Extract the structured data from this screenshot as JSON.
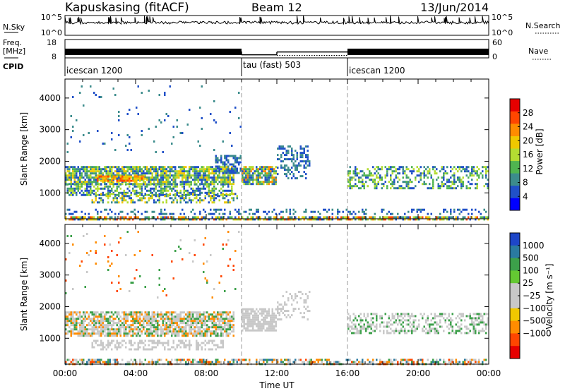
{
  "header": {
    "station": "Kapuskasing (fitACF)",
    "beam": "Beam 12",
    "date": "13/Jun/2014"
  },
  "sky_panel": {
    "left_label": "N.Sky",
    "left_ticks": [
      "10^5",
      "10^0"
    ],
    "right_label": "N.Search",
    "right_ticks": [
      "10^5",
      "10^0"
    ]
  },
  "freq_panel": {
    "left_label_line1": "Freq.",
    "left_label_line2": "[MHz]",
    "left_ticks": [
      "18",
      "8"
    ],
    "right_label": "Nave",
    "right_ticks": [
      "60",
      "0"
    ]
  },
  "cpid": {
    "label": "CPID",
    "segments": [
      {
        "name": "icescan 1200",
        "start_hour": 0
      },
      {
        "name": "tau (fast) 503",
        "start_hour": 10
      },
      {
        "name": "icescan 1200",
        "start_hour": 16
      }
    ]
  },
  "time_axis": {
    "label": "Time UT",
    "tick_labels": [
      "00:00",
      "04:00",
      "08:00",
      "12:00",
      "16:00",
      "20:00",
      "00:00"
    ]
  },
  "power_panel": {
    "ylabel": "Slant Range [km]",
    "yticks": [
      "1000",
      "2000",
      "3000",
      "4000"
    ],
    "colorbar_label": "Power [dB]",
    "colorbar_ticks": [
      "4",
      "8",
      "12",
      "16",
      "20",
      "24",
      "28"
    ],
    "colorbar_colors": [
      "#0000ff",
      "#2050c8",
      "#3c8c8c",
      "#50b450",
      "#b4dc32",
      "#f0c800",
      "#ff8c00",
      "#ff4600",
      "#e60000"
    ]
  },
  "velocity_panel": {
    "ylabel": "Slant Range [km]",
    "yticks": [
      "1000",
      "2000",
      "3000",
      "4000"
    ],
    "colorbar_label": "Velocity [m s⁻¹]",
    "colorbar_ticks": [
      "1000",
      "500",
      "100",
      "25",
      "−25",
      "−100",
      "−500",
      "−1000"
    ],
    "colorbar_colors": [
      "#1e46c8",
      "#2a7aa0",
      "#3ca04a",
      "#64c832",
      "#c8c8c8",
      "#c8c8c8",
      "#f0c800",
      "#ff8c00",
      "#ff4600",
      "#e60000"
    ]
  },
  "chart_data": {
    "type": "heatmap",
    "title": "Kapuskasing (fitACF)",
    "xlabel": "Time UT",
    "ylabel": "Slant Range [km]",
    "xlim": [
      0,
      24
    ],
    "ylim": [
      180,
      4600
    ],
    "freq_mhz": [
      {
        "start": 0,
        "end": 10,
        "value": 11.5
      },
      {
        "start": 10,
        "end": 12,
        "value": 9.7
      },
      {
        "start": 12,
        "end": 16,
        "value": 11.2
      },
      {
        "start": 16,
        "end": 24,
        "value": 11.5
      }
    ],
    "nave": [
      {
        "start": 12,
        "end": 16,
        "value": 8
      }
    ],
    "power_regions": [
      {
        "t0": 0,
        "t1": 9.6,
        "r0": 1300,
        "r1": 1850,
        "density": 0.8,
        "levels": [
          4,
          8,
          12,
          16,
          20
        ]
      },
      {
        "t0": 1.8,
        "t1": 4.6,
        "r0": 1350,
        "r1": 1550,
        "density": 0.7,
        "levels": [
          20,
          24,
          28
        ]
      },
      {
        "t0": 0,
        "t1": 9.5,
        "r0": 900,
        "r1": 1300,
        "density": 0.55,
        "levels": [
          4,
          8,
          12,
          16
        ]
      },
      {
        "t0": 1.5,
        "t1": 9.8,
        "r0": 700,
        "r1": 1000,
        "density": 0.45,
        "levels": [
          4,
          8,
          16,
          20
        ]
      },
      {
        "t0": 8.5,
        "t1": 10,
        "r0": 1600,
        "r1": 2200,
        "density": 0.6,
        "levels": [
          4,
          8
        ]
      },
      {
        "t0": 10,
        "t1": 12,
        "r0": 1250,
        "r1": 1850,
        "density": 0.85,
        "levels": [
          4,
          8,
          12,
          16,
          24
        ]
      },
      {
        "t0": 12,
        "t1": 13.8,
        "r0": 1450,
        "r1": 2500,
        "density": 0.35,
        "levels": [
          4,
          8
        ]
      },
      {
        "t0": 16,
        "t1": 24,
        "r0": 1150,
        "r1": 1850,
        "density": 0.45,
        "levels": [
          4,
          8,
          12,
          16
        ]
      },
      {
        "t0": 0,
        "t1": 24,
        "r0": 300,
        "r1": 500,
        "density": 0.25,
        "levels": [
          4,
          8
        ]
      },
      {
        "t0": 0,
        "t1": 24,
        "r0": 180,
        "r1": 260,
        "density": 0.7,
        "levels": [
          4,
          8,
          12,
          16,
          20,
          24,
          28
        ]
      },
      {
        "t0": 0,
        "t1": 10,
        "r0": 2300,
        "r1": 4400,
        "density": 0.03,
        "levels": [
          4,
          8
        ]
      }
    ],
    "velocity_regions": [
      {
        "t0": 0,
        "t1": 9.6,
        "r0": 1050,
        "r1": 1850,
        "density": 0.75,
        "levels": [
          -25,
          25,
          100,
          -100
        ]
      },
      {
        "t0": 1.5,
        "t1": 9,
        "r0": 650,
        "r1": 950,
        "density": 0.5,
        "levels": [
          -25,
          25
        ]
      },
      {
        "t0": 10,
        "t1": 12,
        "r0": 1250,
        "r1": 1950,
        "density": 0.8,
        "levels": [
          -25,
          25
        ]
      },
      {
        "t0": 12,
        "t1": 13.8,
        "r0": 1600,
        "r1": 2500,
        "density": 0.25,
        "levels": [
          -25,
          25
        ]
      },
      {
        "t0": 16,
        "t1": 24,
        "r0": 1150,
        "r1": 1800,
        "density": 0.4,
        "levels": [
          -25,
          25,
          100
        ]
      },
      {
        "t0": 0,
        "t1": 24,
        "r0": 180,
        "r1": 350,
        "density": 0.55,
        "levels": [
          -25,
          25,
          100,
          -100,
          500,
          -500
        ]
      },
      {
        "t0": 0,
        "t1": 10,
        "r0": 2300,
        "r1": 4400,
        "density": 0.03,
        "levels": [
          25,
          -100,
          -500,
          100
        ]
      }
    ]
  }
}
